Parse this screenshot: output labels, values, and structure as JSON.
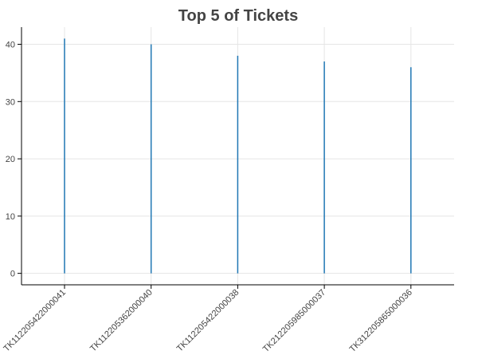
{
  "chart_data": {
    "type": "bar",
    "title": "Top 5 of Tickets",
    "xlabel": "",
    "ylabel": "",
    "categories": [
      "TK112205422000041",
      "TK112205362000040",
      "TK112205422000038",
      "TK212205985000037",
      "TK312205865000036"
    ],
    "series": [
      {
        "values": [
          41,
          40,
          38,
          37,
          36
        ]
      }
    ],
    "ylim": [
      -2,
      43
    ],
    "yticks": [
      0,
      10,
      20,
      30,
      40
    ],
    "grid": true,
    "colors": {
      "bar": "#1f77b4",
      "grid": "#e5e5e5",
      "axis": "#000000",
      "text": "#444444"
    }
  }
}
